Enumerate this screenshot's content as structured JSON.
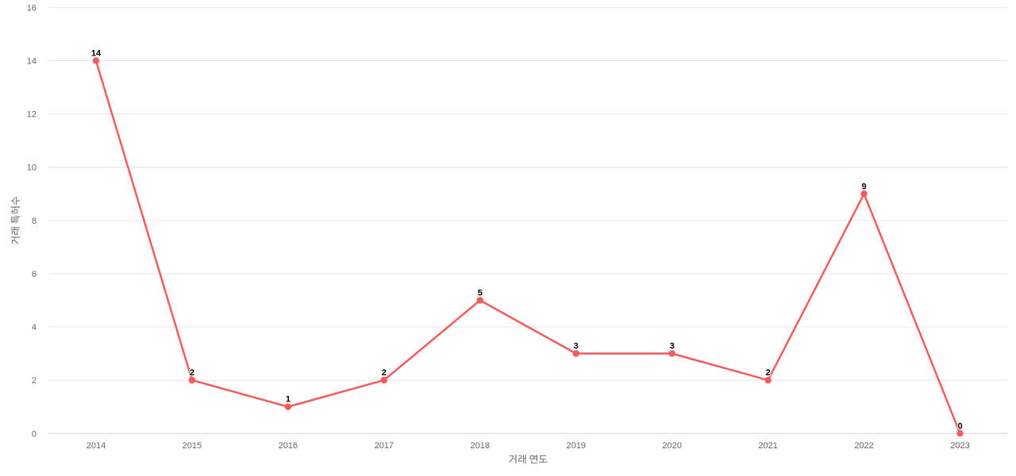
{
  "chart_data": {
    "type": "line",
    "title": "",
    "categories": [
      "2014",
      "2015",
      "2016",
      "2017",
      "2018",
      "2019",
      "2020",
      "2021",
      "2022",
      "2023"
    ],
    "series": [
      {
        "name": "거래 특허수",
        "values": [
          14,
          2,
          1,
          2,
          5,
          3,
          3,
          2,
          9,
          0
        ]
      }
    ],
    "data_point_labels": [
      "14",
      "2",
      "1",
      "2",
      "5",
      "3",
      "3",
      "2",
      "9",
      "0"
    ],
    "xlabel": "거래 연도",
    "ylabel": "거래 특허수",
    "ylim": [
      0,
      16
    ],
    "yticks": [
      0,
      2,
      4,
      6,
      8,
      10,
      12,
      14,
      16
    ],
    "grid": "horizontal",
    "legend": "none",
    "show_data_labels": true,
    "marker": "circle",
    "colors": {
      "series": "#f45b5b",
      "gridline": "#e6e6e6",
      "axis_line": "#ccd6eb",
      "tick_label": "#666666",
      "axis_title": "#666666",
      "data_label": "#000000",
      "background": "#ffffff"
    }
  }
}
